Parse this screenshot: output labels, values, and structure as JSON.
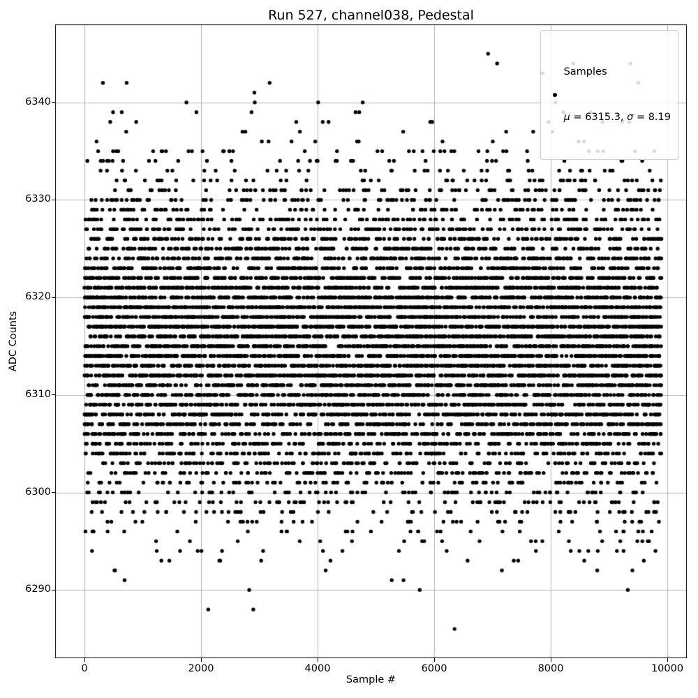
{
  "figure": {
    "title": "Run 527, channel038, Pedestal",
    "background_color": "#ffffff",
    "text_color": "#000000"
  },
  "axes": {
    "xlabel": "Sample #",
    "ylabel": "ADC Counts",
    "x_tick_labels": [
      "0",
      "2000",
      "4000",
      "6000",
      "8000",
      "10000"
    ],
    "y_tick_labels": [
      "6290",
      "6300",
      "6310",
      "6320",
      "6330",
      "6340"
    ],
    "grid_color": "#b0b0b0",
    "spine_color": "#000000"
  },
  "legend": {
    "series_label": "Samples",
    "mu_symbol": "μ",
    "mu_text": " = 6315.3, ",
    "sigma_symbol": "σ",
    "sigma_text": " = 8.19",
    "marker_color": "#000000",
    "edge_color": "#cccccc"
  },
  "chart_data": {
    "type": "scatter",
    "title": "Run 527, channel038, Pedestal",
    "xlabel": "Sample #",
    "ylabel": "ADC Counts",
    "series_label": "Samples",
    "n_points": 9900,
    "x_range": [
      0,
      9899
    ],
    "y_distribution": {
      "kind": "gaussian_rounded_to_integer",
      "mean": 6315.3,
      "sigma": 8.19,
      "min_observed": 6286,
      "max_observed": 6345
    },
    "mu": 6315.3,
    "sigma": 8.19,
    "xlim": [
      -503,
      10335
    ],
    "ylim": [
      6283,
      6348
    ],
    "x_ticks": [
      0,
      2000,
      4000,
      6000,
      8000,
      10000
    ],
    "y_ticks": [
      6290,
      6300,
      6310,
      6320,
      6330,
      6340
    ],
    "grid": true,
    "legend_position": "upper right",
    "marker": {
      "color": "#000000",
      "radius_px": 2.7
    },
    "seed": 1337
  }
}
